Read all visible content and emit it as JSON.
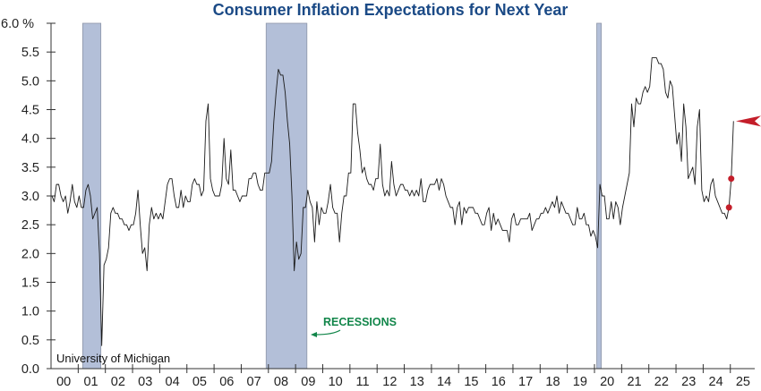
{
  "chart_data": {
    "type": "line",
    "title": "Consumer Inflation Expectations for Next Year",
    "xlabel": "",
    "ylabel": "%",
    "ylim": [
      0,
      6
    ],
    "yticks": [
      "0.0",
      "0.5",
      "1.0",
      "1.5",
      "2.0",
      "2.5",
      "3.0",
      "3.5",
      "4.0",
      "4.5",
      "5.0",
      "5.5",
      "6.0 %"
    ],
    "xticks": [
      "00",
      "01",
      "02",
      "03",
      "04",
      "05",
      "06",
      "07",
      "08",
      "09",
      "10",
      "11",
      "12",
      "13",
      "14",
      "15",
      "16",
      "17",
      "18",
      "19",
      "20",
      "21",
      "22",
      "23",
      "24",
      "25"
    ],
    "grid": false,
    "source": "University of Michigan",
    "recession_label": "RECESSIONS",
    "recessions": [
      {
        "start": "2001-03",
        "end": "2001-11"
      },
      {
        "start": "2007-12",
        "end": "2009-06"
      },
      {
        "start": "2020-02",
        "end": "2020-04"
      }
    ],
    "start": "2000-01",
    "frequency": "monthly",
    "values": [
      3.0,
      2.9,
      3.2,
      3.2,
      3.0,
      2.9,
      3.0,
      2.7,
      2.9,
      3.2,
      2.9,
      2.8,
      3.0,
      2.8,
      2.8,
      3.1,
      3.2,
      3.0,
      2.6,
      2.7,
      2.8,
      2.0,
      0.4,
      1.8,
      1.9,
      2.1,
      2.7,
      2.8,
      2.7,
      2.7,
      2.6,
      2.6,
      2.5,
      2.5,
      2.4,
      2.5,
      2.5,
      2.7,
      3.1,
      2.5,
      2.0,
      2.1,
      1.7,
      2.5,
      2.8,
      2.6,
      2.7,
      2.6,
      2.7,
      2.6,
      2.9,
      3.2,
      3.3,
      3.3,
      3.0,
      2.8,
      2.8,
      3.1,
      2.8,
      3.0,
      2.9,
      2.9,
      3.2,
      3.3,
      3.2,
      3.2,
      3.0,
      3.1,
      4.3,
      4.6,
      3.3,
      3.1,
      3.0,
      3.0,
      3.0,
      3.2,
      4.0,
      3.3,
      3.2,
      3.8,
      3.1,
      3.1,
      3.0,
      2.9,
      3.0,
      3.0,
      3.0,
      3.3,
      3.3,
      3.4,
      3.4,
      3.2,
      3.1,
      3.1,
      3.4,
      3.4,
      3.4,
      3.6,
      4.3,
      4.8,
      5.2,
      5.1,
      5.1,
      4.8,
      4.3,
      3.9,
      3.0,
      1.7,
      2.2,
      1.9,
      2.0,
      2.8,
      2.8,
      3.1,
      2.9,
      2.8,
      2.2,
      2.9,
      2.5,
      2.8,
      2.7,
      2.7,
      2.9,
      3.2,
      2.8,
      2.7,
      2.7,
      2.2,
      2.7,
      3.0,
      3.0,
      3.4,
      3.4,
      4.6,
      4.6,
      4.1,
      3.8,
      3.4,
      3.5,
      3.3,
      3.2,
      3.2,
      3.1,
      3.3,
      3.3,
      3.9,
      3.2,
      3.0,
      3.1,
      3.0,
      3.6,
      3.2,
      3.0,
      3.1,
      3.2,
      3.2,
      3.1,
      3.1,
      3.0,
      3.1,
      3.0,
      3.1,
      3.0,
      3.3,
      2.9,
      2.9,
      3.1,
      3.2,
      3.2,
      3.2,
      3.3,
      3.1,
      3.3,
      3.2,
      3.0,
      2.9,
      2.8,
      2.8,
      2.5,
      2.8,
      2.9,
      2.5,
      2.8,
      2.7,
      2.8,
      2.8,
      2.8,
      2.7,
      2.7,
      2.6,
      2.5,
      2.5,
      2.7,
      2.8,
      2.4,
      2.7,
      2.5,
      2.6,
      2.5,
      2.4,
      2.4,
      2.4,
      2.2,
      2.6,
      2.7,
      2.5,
      2.5,
      2.6,
      2.6,
      2.6,
      2.6,
      2.7,
      2.4,
      2.5,
      2.6,
      2.6,
      2.7,
      2.7,
      2.8,
      2.7,
      2.8,
      2.9,
      2.8,
      3.0,
      2.7,
      2.9,
      2.8,
      2.7,
      2.7,
      2.6,
      2.5,
      2.5,
      2.8,
      2.6,
      2.6,
      2.7,
      2.5,
      2.5,
      2.3,
      2.4,
      2.3,
      2.1,
      3.2,
      3.0,
      3.0,
      2.6,
      2.6,
      2.9,
      2.6,
      2.9,
      2.8,
      2.5,
      2.8,
      3.0,
      3.2,
      3.4,
      4.6,
      4.2,
      4.7,
      4.6,
      4.6,
      4.8,
      4.9,
      4.8,
      4.9,
      5.4,
      5.4,
      5.4,
      5.3,
      5.3,
      5.2,
      4.8,
      4.7,
      5.0,
      4.9,
      4.4,
      3.9,
      4.1,
      3.6,
      4.6,
      4.2,
      3.3,
      3.4,
      3.5,
      3.2,
      4.2,
      4.5,
      3.1,
      2.9,
      3.0,
      2.9,
      3.2,
      3.3,
      3.0,
      2.9,
      2.8,
      2.7,
      2.7,
      2.6,
      2.8,
      3.3,
      4.3
    ],
    "highlighted_points": [
      {
        "date": "2024-12",
        "value": 2.8
      },
      {
        "date": "2025-01",
        "value": 3.3
      }
    ],
    "latest_marker": {
      "date": "2025-02",
      "value": 4.3
    },
    "colors": {
      "line": "#1a1a1a",
      "recession": "#b3bfd8",
      "title": "#1b4a86",
      "marker": "#c41e2a",
      "recession_label": "#12864a"
    }
  }
}
